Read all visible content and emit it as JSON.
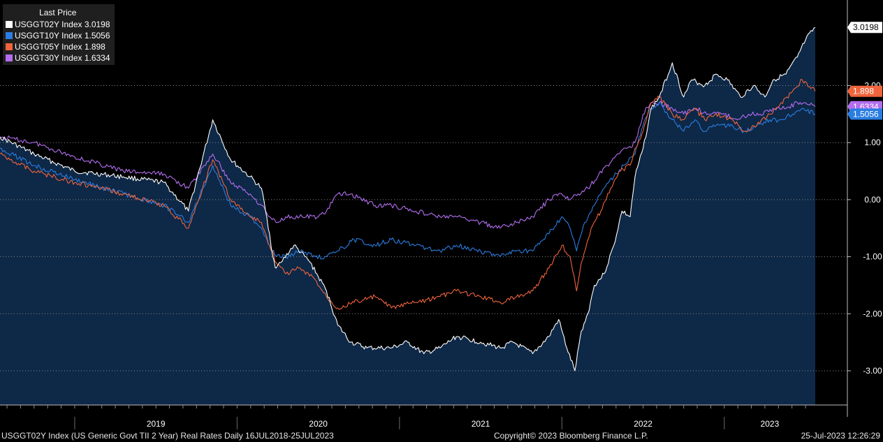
{
  "legend": {
    "title": "Last Price",
    "entries": [
      {
        "label": "USGGT02Y Index 3.0198",
        "color": "#ffffff"
      },
      {
        "label": "USGGT10Y Index 1.5056",
        "color": "#2a7de1"
      },
      {
        "label": "USGGT05Y Index 1.898",
        "color": "#f0643c"
      },
      {
        "label": "USGGT30Y Index 1.6334",
        "color": "#b36ef0"
      }
    ]
  },
  "footer": {
    "left": "USGGT02Y Index (US Generic Govt TII 2 Year) Real Rates  Daily 16JUL2018-25JUL2023",
    "center": "Copyright© 2023 Bloomberg Finance L.P.",
    "right": "25-Jul-2023 12:26:29"
  },
  "chart_data": {
    "type": "line",
    "title": "USGGT02Y Index (US Generic Govt TII 2 Year) Real Rates  Daily 16JUL2018-25JUL2023",
    "x_ticks": [
      "2019",
      "2020",
      "2021",
      "2022",
      "2023"
    ],
    "y_ticks": [
      "-3.00",
      "-2.00",
      "-1.00",
      "0.00",
      "1.00",
      "2.00"
    ],
    "ylim": [
      -3.6,
      3.5
    ],
    "grid": "horizontal dotted",
    "legend_position": "top-left",
    "background_color": "#000000",
    "area_fill_color": "#0e2847",
    "series": [
      {
        "name": "USGGT02Y Index",
        "color": "#ffffff",
        "last": "3.0198",
        "fill": true,
        "x": [
          2018.54,
          2018.75,
          2019.0,
          2019.3,
          2019.55,
          2019.7,
          2019.85,
          2019.96,
          2020.08,
          2020.15,
          2020.2,
          2020.22,
          2020.23,
          2020.24,
          2020.27,
          2020.35,
          2020.45,
          2020.55,
          2020.62,
          2020.7,
          2020.8,
          2020.95,
          2021.05,
          2021.15,
          2021.25,
          2021.35,
          2021.5,
          2021.62,
          2021.7,
          2021.82,
          2021.92,
          2021.98,
          2022.03,
          2022.08,
          2022.12,
          2022.16,
          2022.2,
          2022.26,
          2022.32,
          2022.37,
          2022.42,
          2022.45,
          2022.5,
          2022.55,
          2022.6,
          2022.68,
          2022.75,
          2022.8,
          2022.88,
          2022.95,
          2023.02,
          2023.1,
          2023.18,
          2023.25,
          2023.3,
          2023.38,
          2023.45,
          2023.5,
          2023.56
        ],
        "y": [
          1.1,
          0.8,
          0.5,
          0.4,
          0.3,
          -0.2,
          1.4,
          0.7,
          0.4,
          0.2,
          -0.6,
          -1.0,
          -1.1,
          -1.2,
          -1.1,
          -0.8,
          -1.1,
          -1.6,
          -2.2,
          -2.5,
          -2.6,
          -2.6,
          -2.5,
          -2.7,
          -2.6,
          -2.4,
          -2.5,
          -2.6,
          -2.5,
          -2.7,
          -2.4,
          -2.1,
          -2.6,
          -3.0,
          -2.3,
          -2.0,
          -1.5,
          -1.3,
          -0.8,
          -0.2,
          -0.3,
          0.4,
          0.9,
          1.6,
          1.8,
          2.4,
          1.8,
          2.1,
          2.0,
          2.2,
          2.1,
          1.8,
          2.0,
          1.8,
          2.1,
          2.2,
          2.5,
          2.8,
          3.02
        ]
      },
      {
        "name": "USGGT05Y Index",
        "color": "#f0643c",
        "last": "1.898",
        "x": [
          2018.54,
          2018.75,
          2019.0,
          2019.3,
          2019.55,
          2019.7,
          2019.85,
          2019.96,
          2020.08,
          2020.15,
          2020.2,
          2020.24,
          2020.3,
          2020.38,
          2020.48,
          2020.55,
          2020.62,
          2020.72,
          2020.85,
          2020.95,
          2021.1,
          2021.25,
          2021.35,
          2021.5,
          2021.62,
          2021.72,
          2021.82,
          2021.92,
          2022.0,
          2022.05,
          2022.09,
          2022.12,
          2022.18,
          2022.24,
          2022.3,
          2022.36,
          2022.42,
          2022.45,
          2022.5,
          2022.55,
          2022.6,
          2022.68,
          2022.75,
          2022.82,
          2022.88,
          2022.95,
          2023.05,
          2023.12,
          2023.2,
          2023.28,
          2023.35,
          2023.42,
          2023.48,
          2023.56
        ],
        "y": [
          0.8,
          0.5,
          0.3,
          0.1,
          -0.1,
          -0.5,
          0.7,
          0.0,
          -0.3,
          -0.4,
          -0.8,
          -1.1,
          -1.3,
          -1.2,
          -1.4,
          -1.7,
          -1.9,
          -1.8,
          -1.7,
          -1.9,
          -1.8,
          -1.7,
          -1.6,
          -1.7,
          -1.8,
          -1.7,
          -1.6,
          -1.2,
          -0.8,
          -1.0,
          -1.6,
          -1.1,
          -0.5,
          -0.2,
          0.2,
          0.5,
          0.6,
          0.9,
          1.2,
          1.7,
          1.8,
          1.5,
          1.4,
          1.6,
          1.4,
          1.5,
          1.4,
          1.2,
          1.3,
          1.5,
          1.7,
          1.9,
          2.1,
          1.9
        ]
      },
      {
        "name": "USGGT10Y Index",
        "color": "#2a7de1",
        "last": "1.5056",
        "x": [
          2018.54,
          2018.75,
          2019.0,
          2019.3,
          2019.55,
          2019.7,
          2019.85,
          2019.96,
          2020.08,
          2020.15,
          2020.2,
          2020.24,
          2020.3,
          2020.38,
          2020.48,
          2020.55,
          2020.62,
          2020.72,
          2020.85,
          2020.95,
          2021.1,
          2021.25,
          2021.35,
          2021.5,
          2021.62,
          2021.72,
          2021.82,
          2021.92,
          2022.0,
          2022.05,
          2022.09,
          2022.14,
          2022.2,
          2022.26,
          2022.32,
          2022.38,
          2022.45,
          2022.5,
          2022.55,
          2022.6,
          2022.68,
          2022.75,
          2022.82,
          2022.88,
          2022.95,
          2023.05,
          2023.12,
          2023.2,
          2023.28,
          2023.35,
          2023.42,
          2023.48,
          2023.56
        ],
        "y": [
          0.9,
          0.6,
          0.35,
          0.1,
          -0.1,
          -0.4,
          0.6,
          -0.1,
          -0.3,
          -0.5,
          -0.8,
          -1.0,
          -1.0,
          -0.9,
          -1.0,
          -1.0,
          -0.9,
          -0.7,
          -0.8,
          -0.7,
          -0.8,
          -0.9,
          -0.8,
          -0.9,
          -1.0,
          -0.9,
          -0.9,
          -0.6,
          -0.3,
          -0.5,
          -0.9,
          -0.4,
          -0.1,
          0.2,
          0.4,
          0.6,
          0.8,
          1.3,
          1.6,
          1.7,
          1.4,
          1.2,
          1.4,
          1.2,
          1.3,
          1.3,
          1.2,
          1.3,
          1.4,
          1.4,
          1.5,
          1.6,
          1.5
        ]
      },
      {
        "name": "USGGT30Y Index",
        "color": "#b36ef0",
        "last": "1.6334",
        "x": [
          2018.54,
          2018.75,
          2019.0,
          2019.3,
          2019.55,
          2019.7,
          2019.85,
          2019.96,
          2020.08,
          2020.15,
          2020.2,
          2020.24,
          2020.3,
          2020.4,
          2020.5,
          2020.55,
          2020.62,
          2020.7,
          2020.85,
          2020.95,
          2021.1,
          2021.25,
          2021.35,
          2021.5,
          2021.62,
          2021.72,
          2021.82,
          2021.92,
          2022.0,
          2022.05,
          2022.1,
          2022.16,
          2022.22,
          2022.28,
          2022.34,
          2022.4,
          2022.45,
          2022.5,
          2022.55,
          2022.6,
          2022.68,
          2022.75,
          2022.82,
          2022.9,
          2023.0,
          2023.08,
          2023.15,
          2023.22,
          2023.3,
          2023.38,
          2023.45,
          2023.5,
          2023.56
        ],
        "y": [
          1.1,
          1.0,
          0.75,
          0.5,
          0.45,
          0.2,
          0.8,
          0.3,
          0.1,
          -0.1,
          -0.3,
          -0.4,
          -0.3,
          -0.3,
          -0.3,
          -0.2,
          0.1,
          0.1,
          -0.1,
          -0.1,
          -0.2,
          -0.3,
          -0.3,
          -0.4,
          -0.5,
          -0.4,
          -0.3,
          0.0,
          0.1,
          0.0,
          0.1,
          0.2,
          0.4,
          0.6,
          0.8,
          0.9,
          1.0,
          1.5,
          1.7,
          1.7,
          1.6,
          1.5,
          1.6,
          1.5,
          1.5,
          1.4,
          1.5,
          1.5,
          1.6,
          1.6,
          1.7,
          1.7,
          1.63
        ]
      }
    ]
  }
}
